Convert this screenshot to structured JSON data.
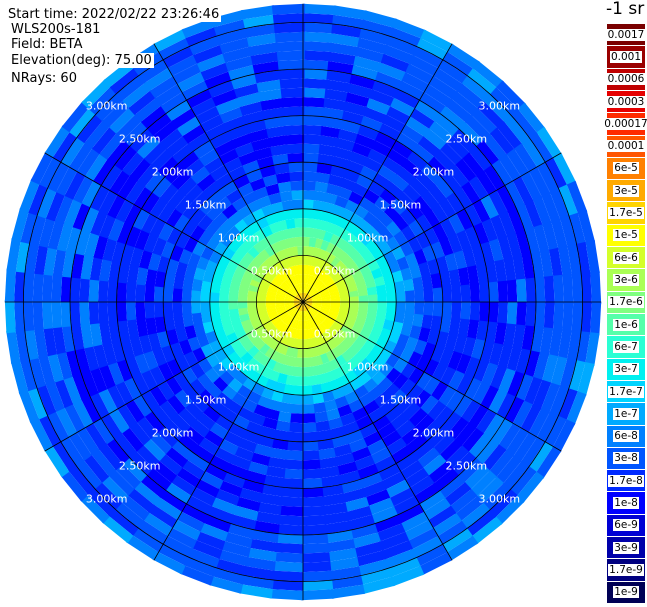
{
  "header": {
    "start_time": "Start time: 2022/02/22 23:26:46",
    "instrument": "WLS200s-181",
    "field": "Field: BETA",
    "elevation": "Elevation(deg): 75.00",
    "nrays": "NRays: 60"
  },
  "colorbar": {
    "title": "-1 sr",
    "entries": [
      {
        "label": "0.0017",
        "color": "#7a0000"
      },
      {
        "label": "0.001",
        "color": "#9a0000"
      },
      {
        "label": "0.0006",
        "color": "#c00000"
      },
      {
        "label": "0.0003",
        "color": "#e60000"
      },
      {
        "label": "0.00017",
        "color": "#ff2a00"
      },
      {
        "label": "0.0001",
        "color": "#ff5500"
      },
      {
        "label": "6e-5",
        "color": "#ff8000"
      },
      {
        "label": "3e-5",
        "color": "#ffaa00"
      },
      {
        "label": "1.7e-5",
        "color": "#ffd400"
      },
      {
        "label": "1e-5",
        "color": "#ffff00"
      },
      {
        "label": "6e-6",
        "color": "#d4ff2a"
      },
      {
        "label": "3e-6",
        "color": "#aaff55"
      },
      {
        "label": "1.7e-6",
        "color": "#80ff80"
      },
      {
        "label": "1e-6",
        "color": "#55ffaa"
      },
      {
        "label": "6e-7",
        "color": "#2affd4"
      },
      {
        "label": "3e-7",
        "color": "#00f0f0"
      },
      {
        "label": "1.7e-7",
        "color": "#00d4ff"
      },
      {
        "label": "1e-7",
        "color": "#00aaff"
      },
      {
        "label": "6e-8",
        "color": "#0080ff"
      },
      {
        "label": "3e-8",
        "color": "#0055ff"
      },
      {
        "label": "1.7e-8",
        "color": "#002aff"
      },
      {
        "label": "1e-8",
        "color": "#0000ff"
      },
      {
        "label": "6e-9",
        "color": "#0000d4"
      },
      {
        "label": "3e-9",
        "color": "#0000aa"
      },
      {
        "label": "1.7e-9",
        "color": "#000080"
      },
      {
        "label": "1e-9",
        "color": "#000055"
      }
    ]
  },
  "chart_data": {
    "type": "heatmap",
    "projection": "polar",
    "field": "BETA",
    "units": "-1 sr",
    "n_rays": 60,
    "range_rings_km": [
      0.5,
      1.0,
      1.5,
      2.0,
      2.5,
      3.0
    ],
    "range_labels": [
      "0.50km",
      "1.00km",
      "1.50km",
      "2.00km",
      "2.50km",
      "3.00km"
    ],
    "max_range_km": 3.2,
    "spoke_angles_deg": [
      0,
      30,
      60,
      90,
      120,
      150,
      180,
      210,
      240,
      270,
      300,
      330
    ],
    "label_angles_deg": [
      45,
      135,
      225,
      315
    ],
    "radial_profile": {
      "range_km": [
        0.0,
        0.1,
        0.2,
        0.3,
        0.4,
        0.5,
        0.6,
        0.7,
        0.8,
        0.9,
        1.0,
        1.1,
        1.2,
        1.3,
        1.5,
        2.0,
        3.0,
        3.2
      ],
      "beta": [
        1.7e-05,
        1e-05,
        1e-05,
        1e-05,
        6e-06,
        3e-06,
        1.7e-06,
        1e-06,
        6e-07,
        3e-07,
        1.7e-07,
        6e-08,
        3e-08,
        1.7e-08,
        1.7e-08,
        1.7e-08,
        3e-08,
        6e-08
      ]
    }
  }
}
